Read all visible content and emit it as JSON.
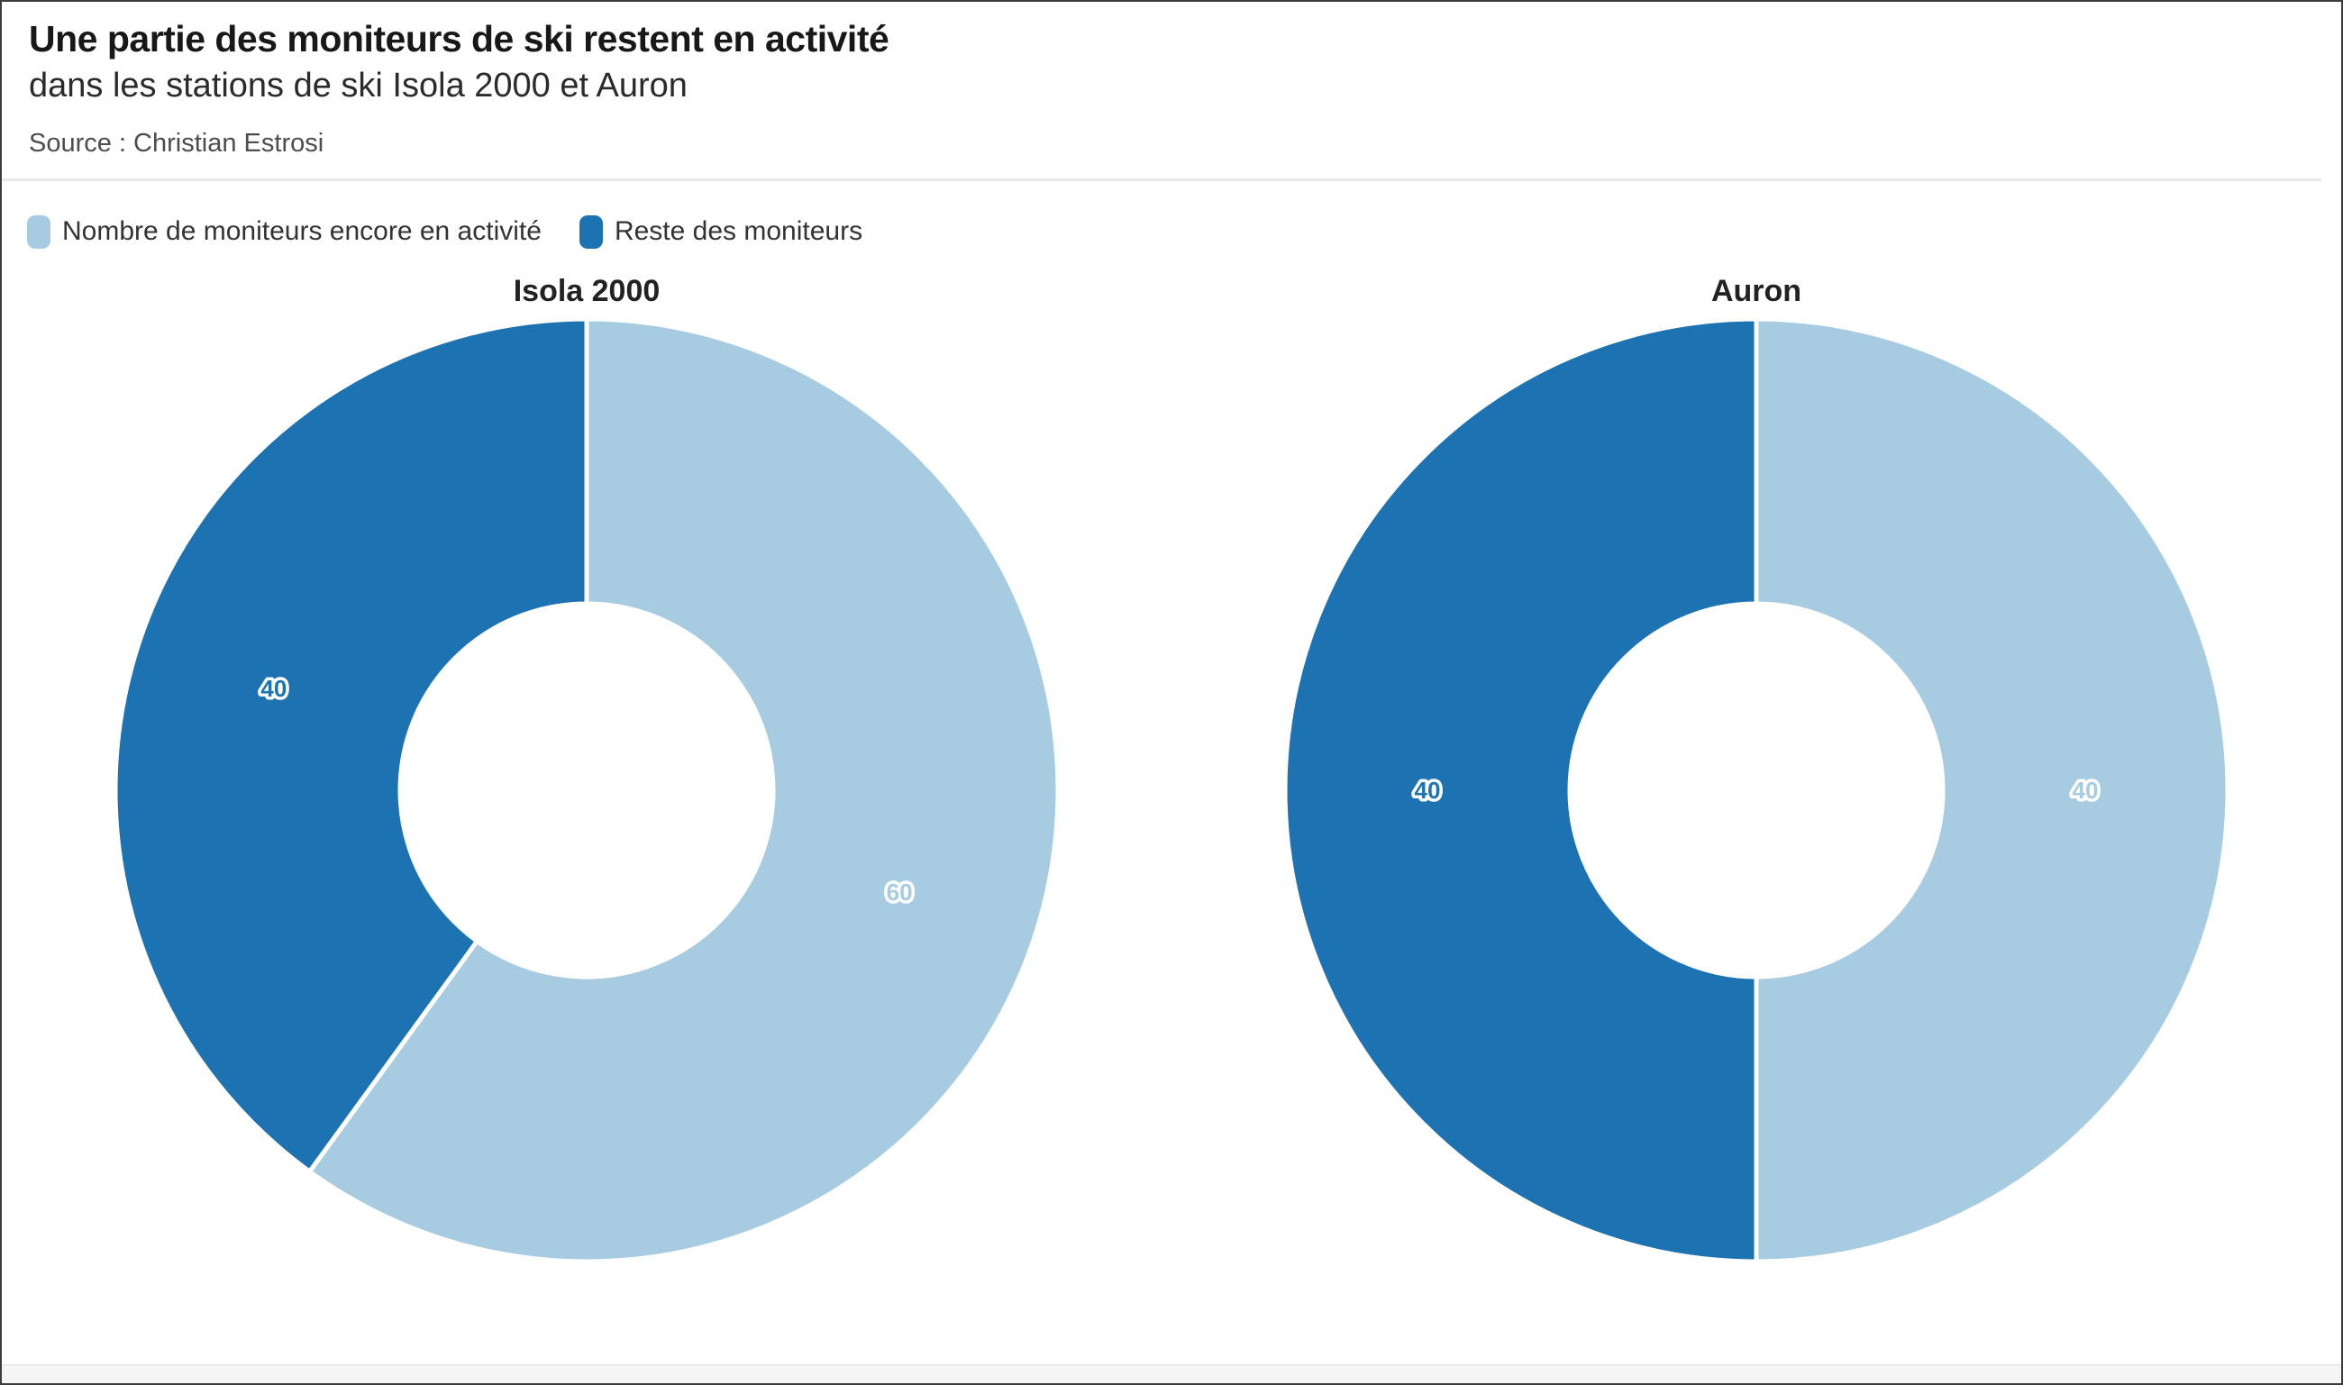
{
  "header": {
    "title": "Une partie des moniteurs de ski restent en activité",
    "subtitle": "dans les stations de ski Isola 2000 et Auron",
    "source_label": "Source : Christian Estrosi"
  },
  "legend": {
    "items": [
      {
        "label": "Nombre de moniteurs encore en activité",
        "color": "#a7cce2"
      },
      {
        "label": "Reste des moniteurs",
        "color": "#1d72b2"
      }
    ]
  },
  "colors": {
    "light_blue": "#a7cce2",
    "dark_blue": "#1d72b2",
    "divider_gray": "#e9e9e9",
    "footer_gray": "#f5f5f5",
    "slice_stroke": "#ffffff"
  },
  "chart_data": [
    {
      "type": "pie",
      "donut": true,
      "title": "Isola 2000",
      "start_angle_deg": 0,
      "direction": "clockwise",
      "inner_radius_ratio": 0.395,
      "slices": [
        {
          "label": "Nombre de moniteurs encore en activité",
          "value": 60,
          "value_label": "60",
          "color": "#a7cce2"
        },
        {
          "label": "Reste des moniteurs",
          "value": 40,
          "value_label": "40",
          "color": "#1d72b2"
        }
      ]
    },
    {
      "type": "pie",
      "donut": true,
      "title": "Auron",
      "start_angle_deg": 0,
      "direction": "clockwise",
      "inner_radius_ratio": 0.395,
      "slices": [
        {
          "label": "Nombre de moniteurs encore en activité",
          "value": 40,
          "value_label": "40",
          "color": "#a7cce2"
        },
        {
          "label": "Reste des moniteurs",
          "value": 40,
          "value_label": "40",
          "color": "#1d72b2"
        }
      ]
    }
  ]
}
